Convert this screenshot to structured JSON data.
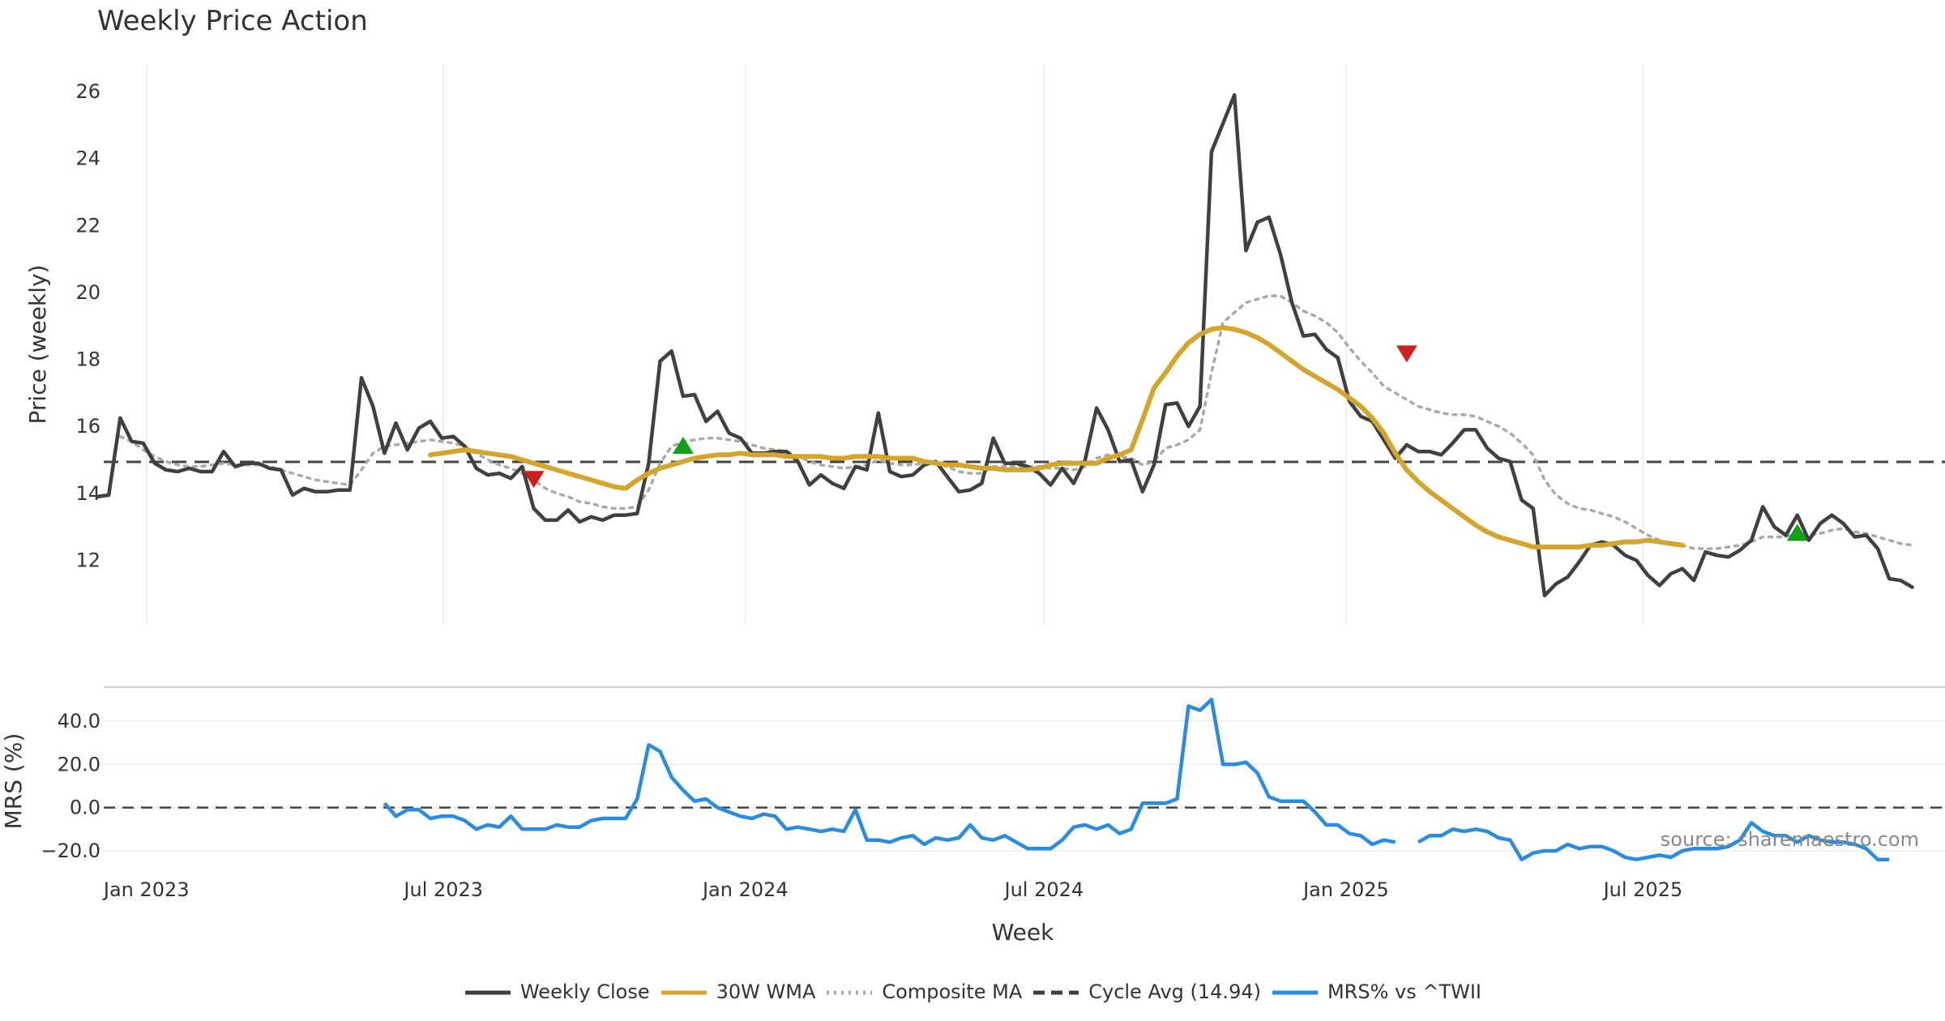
{
  "chart_data": {
    "type": "line",
    "title": "Weekly Price Action",
    "xlabel": "Week",
    "source_note": "source: sharemaestro.com",
    "x_start": "2022-12-02",
    "week_days": 7,
    "x_range": [
      "2022-12-02",
      "2026-01-01"
    ],
    "x_ticks": [
      {
        "label": "Jan 2023",
        "date": "2023-01-01"
      },
      {
        "label": "Jul 2023",
        "date": "2023-07-01"
      },
      {
        "label": "Jan 2024",
        "date": "2024-01-01"
      },
      {
        "label": "Jul 2024",
        "date": "2024-07-01"
      },
      {
        "label": "Jan 2025",
        "date": "2025-01-01"
      },
      {
        "label": "Jul 2025",
        "date": "2025-07-01"
      }
    ],
    "price_panel": {
      "ylabel": "Price (weekly)",
      "ylim": [
        10.1,
        26.8
      ],
      "y_ticks": [
        12,
        14,
        16,
        18,
        20,
        22,
        24,
        26
      ],
      "cycle_avg": 14.94,
      "series": [
        {
          "name": "Weekly Close",
          "color": "#404040",
          "start_index": 0,
          "values": [
            13.9,
            13.95,
            16.25,
            15.55,
            15.5,
            14.9,
            14.7,
            14.65,
            14.75,
            14.65,
            14.65,
            15.25,
            14.8,
            14.9,
            14.9,
            14.75,
            14.7,
            13.95,
            14.15,
            14.05,
            14.05,
            14.1,
            14.1,
            17.45,
            16.6,
            15.2,
            16.1,
            15.3,
            15.95,
            16.15,
            15.65,
            15.7,
            15.4,
            14.75,
            14.55,
            14.6,
            14.45,
            14.8,
            13.55,
            13.2,
            13.2,
            13.5,
            13.15,
            13.3,
            13.2,
            13.35,
            13.35,
            13.4,
            14.9,
            17.95,
            18.25,
            16.9,
            16.95,
            16.15,
            16.45,
            15.8,
            15.65,
            15.2,
            15.2,
            15.25,
            15.25,
            14.95,
            14.25,
            14.55,
            14.3,
            14.15,
            14.8,
            14.7,
            16.4,
            14.65,
            14.5,
            14.55,
            14.85,
            14.95,
            14.5,
            14.05,
            14.1,
            14.3,
            15.65,
            14.9,
            14.9,
            14.8,
            14.6,
            14.25,
            14.75,
            14.3,
            15.0,
            16.55,
            15.9,
            14.95,
            15.0,
            14.05,
            14.85,
            16.65,
            16.7,
            16.0,
            16.6,
            24.2,
            25.05,
            25.9,
            21.25,
            22.1,
            22.25,
            21.15,
            19.7,
            18.7,
            18.75,
            18.3,
            18.05,
            16.75,
            16.3,
            16.15,
            15.6,
            15.05,
            15.45,
            15.25,
            15.25,
            15.15,
            15.5,
            15.9,
            15.9,
            15.35,
            15.05,
            14.95,
            13.8,
            13.55,
            10.95,
            11.3,
            11.5,
            11.95,
            12.45,
            12.55,
            12.45,
            12.15,
            12.0,
            11.55,
            11.25,
            11.6,
            11.75,
            11.4,
            12.25,
            12.15,
            12.1,
            12.3,
            12.6,
            13.6,
            13.0,
            12.75,
            13.35,
            12.6,
            13.1,
            13.35,
            13.1,
            12.7,
            12.75,
            12.35,
            11.45,
            11.4,
            11.2
          ]
        },
        {
          "name": "30W WMA",
          "color": "#D4A52C",
          "start_index": 29,
          "values": [
            15.15,
            15.2,
            15.25,
            15.3,
            15.25,
            15.2,
            15.15,
            15.1,
            15.0,
            14.9,
            14.8,
            14.7,
            14.6,
            14.5,
            14.4,
            14.3,
            14.2,
            14.15,
            14.4,
            14.6,
            14.75,
            14.85,
            14.95,
            15.05,
            15.1,
            15.15,
            15.15,
            15.2,
            15.15,
            15.15,
            15.15,
            15.1,
            15.1,
            15.1,
            15.1,
            15.05,
            15.05,
            15.1,
            15.1,
            15.1,
            15.05,
            15.05,
            15.05,
            14.95,
            14.9,
            14.85,
            14.85,
            14.8,
            14.75,
            14.75,
            14.7,
            14.7,
            14.7,
            14.75,
            14.85,
            14.9,
            14.9,
            14.9,
            14.9,
            15.05,
            15.15,
            15.3,
            16.2,
            17.15,
            17.6,
            18.1,
            18.5,
            18.75,
            18.9,
            18.95,
            18.9,
            18.8,
            18.65,
            18.45,
            18.2,
            17.95,
            17.7,
            17.5,
            17.3,
            17.1,
            16.85,
            16.6,
            16.25,
            15.8,
            15.2,
            14.7,
            14.35,
            14.05,
            13.8,
            13.55,
            13.3,
            13.05,
            12.85,
            12.7,
            12.6,
            12.5,
            12.4,
            12.4,
            12.4,
            12.4,
            12.4,
            12.45,
            12.45,
            12.5,
            12.55,
            12.55,
            12.6,
            12.55,
            12.5,
            12.45
          ]
        },
        {
          "name": "Composite MA",
          "color": "#AAAAAA",
          "dashed": true,
          "start_index": 0,
          "values": [
            null,
            null,
            15.7,
            15.55,
            15.3,
            15.1,
            14.95,
            14.85,
            14.8,
            14.8,
            14.85,
            14.9,
            14.85,
            14.85,
            14.85,
            14.8,
            14.7,
            14.6,
            14.5,
            14.4,
            14.35,
            14.3,
            14.25,
            14.7,
            15.2,
            15.4,
            15.45,
            15.5,
            15.55,
            15.6,
            15.55,
            15.5,
            15.4,
            15.2,
            15.0,
            14.85,
            14.75,
            14.6,
            14.4,
            14.15,
            14.0,
            13.9,
            13.75,
            13.7,
            13.6,
            13.55,
            13.55,
            13.6,
            14.1,
            14.9,
            15.4,
            15.55,
            15.6,
            15.65,
            15.65,
            15.6,
            15.55,
            15.45,
            15.35,
            15.3,
            15.25,
            15.1,
            14.95,
            14.85,
            14.8,
            14.75,
            14.8,
            14.85,
            15.0,
            14.9,
            14.85,
            14.85,
            14.9,
            14.9,
            14.8,
            14.65,
            14.6,
            14.6,
            14.8,
            14.8,
            14.8,
            14.8,
            14.8,
            14.75,
            14.75,
            14.7,
            14.8,
            15.05,
            15.15,
            15.1,
            15.05,
            14.85,
            14.95,
            15.35,
            15.45,
            15.6,
            15.9,
            17.6,
            19.1,
            19.4,
            19.7,
            19.8,
            19.9,
            19.9,
            19.7,
            19.45,
            19.3,
            19.1,
            18.8,
            18.35,
            17.95,
            17.6,
            17.2,
            17.0,
            16.8,
            16.6,
            16.5,
            16.4,
            16.35,
            16.35,
            16.3,
            16.15,
            16.0,
            15.8,
            15.5,
            15.15,
            14.4,
            13.95,
            13.7,
            13.55,
            13.5,
            13.4,
            13.3,
            13.15,
            12.95,
            12.75,
            12.6,
            12.5,
            12.45,
            12.35,
            12.35,
            12.35,
            12.4,
            12.45,
            12.55,
            12.7,
            12.7,
            12.7,
            12.85,
            12.75,
            12.8,
            12.9,
            12.95,
            12.85,
            12.8,
            12.7,
            12.6,
            12.5,
            12.45
          ]
        }
      ],
      "signals": [
        {
          "type": "sell",
          "index": 38,
          "value": 14.45
        },
        {
          "type": "buy",
          "index": 51,
          "value": 15.4
        },
        {
          "type": "sell",
          "index": 114,
          "value": 18.2
        },
        {
          "type": "buy",
          "index": 148,
          "value": 12.8
        }
      ]
    },
    "mrs_panel": {
      "ylabel": "MRS (%)",
      "ylim": [
        -23,
        52
      ],
      "y_ticks": [
        -20,
        0,
        20,
        40
      ],
      "y_tick_labels": [
        "−20.0",
        "0.0",
        "20.0",
        "40.0"
      ],
      "zero_line": 0,
      "series": [
        {
          "name": "MRS% vs ^TWII",
          "color": "#2A8CE0",
          "start_index": 25,
          "values": [
            2,
            -4,
            -1,
            -1,
            -5,
            -4,
            -4,
            -6,
            -10,
            -8,
            -9,
            -4,
            -10,
            -10,
            -10,
            -8,
            -9,
            -9,
            -6,
            -5,
            -5,
            -5,
            4,
            29,
            26,
            14,
            8,
            3,
            4,
            0,
            -2,
            -4,
            -5,
            -3,
            -4,
            -10,
            -9,
            -10,
            -11,
            -10,
            -11,
            -1,
            -15,
            -15,
            -16,
            -14,
            -13,
            -17,
            -14,
            -15,
            -14,
            -8,
            -14,
            -15,
            -13,
            -16,
            -19,
            -19,
            -19,
            -15,
            -9,
            -8,
            -10,
            -8,
            -12,
            -10,
            2,
            2,
            2,
            4,
            47,
            45,
            50,
            20,
            20,
            21,
            16,
            5,
            3,
            3,
            3,
            -2,
            -8,
            -8,
            -12,
            -13,
            -17,
            -15,
            -16,
            null,
            -16,
            -13,
            -13,
            -10,
            -11,
            -10,
            -11,
            -14,
            -15,
            -24,
            -21,
            -20,
            -20,
            -17,
            -19,
            -18,
            -18,
            -20,
            -23,
            -24,
            -23,
            -22,
            -23,
            -20,
            -19,
            -19,
            -19,
            -18,
            -15,
            -7,
            -11,
            -13,
            -13,
            -16,
            -13,
            -15,
            -16,
            -16,
            -17,
            -19,
            -24,
            -24
          ]
        }
      ]
    },
    "legend": [
      {
        "label": "Weekly Close",
        "color": "#404040",
        "style": "solid"
      },
      {
        "label": "30W WMA",
        "color": "#D4A52C",
        "style": "solid"
      },
      {
        "label": "Composite MA",
        "color": "#AAAAAA",
        "style": "dotted"
      },
      {
        "label": "Cycle Avg (14.94)",
        "color": "#404040",
        "style": "dashed"
      },
      {
        "label": "MRS% vs ^TWII",
        "color": "#2A8CE0",
        "style": "solid"
      }
    ]
  }
}
